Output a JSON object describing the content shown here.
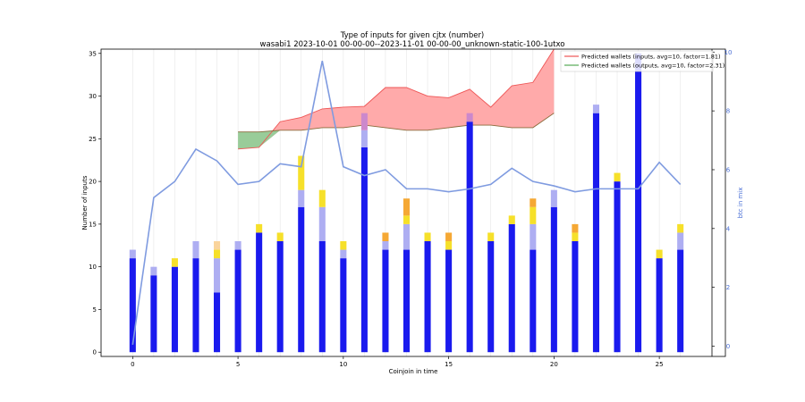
{
  "chart_data": {
    "type": "bar",
    "title": "Type of inputs for given cjtx (number)",
    "subtitle": "wasabi1 2023-10-01 00-00-00--2023-11-01 00-00-00_unknown-static-100-1utxo",
    "xlabel": "Coinjoin in time",
    "ylabel": "Number of inputs",
    "y2label": "btc in mix",
    "x_ticks": [
      0,
      5,
      10,
      15,
      20,
      25
    ],
    "y_ticks": [
      0,
      5,
      10,
      15,
      20,
      25,
      30,
      35
    ],
    "y2_ticks": [
      0,
      2,
      4,
      6,
      8,
      10
    ],
    "xlim": [
      -1.5,
      27.5
    ],
    "ylim": [
      -0.5,
      35.5
    ],
    "y2lim": [
      -0.35,
      10.1
    ],
    "x": [
      0,
      1,
      2,
      3,
      4,
      5,
      6,
      7,
      8,
      9,
      10,
      11,
      12,
      13,
      14,
      15,
      16,
      17,
      18,
      19,
      20,
      21,
      22,
      23,
      24,
      25,
      26
    ],
    "stack_series": [
      {
        "color": "#1a1aee",
        "values": [
          11,
          9,
          10,
          11,
          7,
          12,
          14,
          13,
          17,
          13,
          11,
          24,
          12,
          12,
          13,
          12,
          27,
          13,
          15,
          12,
          17,
          13,
          28,
          20,
          35,
          11,
          12
        ]
      },
      {
        "color": "#aeaef2",
        "values": [
          1,
          1,
          0,
          2,
          4,
          1,
          0,
          0,
          2,
          4,
          1,
          2,
          1,
          3,
          0,
          0,
          0,
          0,
          0,
          3,
          2,
          0,
          1,
          0,
          0,
          0,
          2
        ]
      },
      {
        "color": "#f6e02a",
        "values": [
          0,
          0,
          1,
          0,
          1,
          0,
          1,
          1,
          4,
          2,
          1,
          0,
          0,
          1,
          1,
          1,
          0,
          1,
          1,
          2,
          0,
          1,
          0,
          1,
          0,
          1,
          1
        ]
      },
      {
        "color": "#f5a834",
        "values": [
          0,
          0,
          0,
          0,
          0,
          0,
          0,
          0,
          0,
          0,
          0,
          0,
          1,
          2,
          0,
          1,
          0,
          0,
          0,
          1,
          0,
          1,
          0,
          0,
          0,
          0,
          0
        ]
      },
      {
        "color": "#fad49c",
        "values": [
          0,
          0,
          0,
          0,
          1,
          0,
          0,
          0,
          0,
          0,
          0,
          0,
          0,
          0,
          0,
          0,
          0,
          0,
          0,
          0,
          0,
          0,
          0,
          0,
          0,
          0,
          0
        ]
      },
      {
        "color": "#cc88cc",
        "values": [
          0,
          0,
          0,
          0,
          0,
          0,
          0,
          0,
          0,
          0,
          0,
          2,
          0,
          0,
          0,
          0,
          1,
          0,
          0,
          0,
          0,
          0,
          0,
          0,
          0,
          0,
          0
        ]
      }
    ],
    "btc_in_mix": {
      "color": "#7f9be0",
      "x": [
        0,
        1,
        2,
        3,
        4,
        5,
        6,
        7,
        8,
        9,
        10,
        11,
        12,
        13,
        14,
        15,
        16,
        17,
        18,
        19,
        20,
        21,
        22,
        23,
        24,
        25,
        26
      ],
      "values": [
        0.05,
        5.05,
        5.6,
        6.7,
        6.3,
        5.5,
        5.6,
        6.2,
        6.1,
        9.7,
        6.1,
        5.8,
        6.0,
        5.35,
        5.35,
        5.25,
        5.35,
        5.5,
        6.05,
        5.6,
        5.45,
        5.25,
        5.35,
        5.35,
        5.35,
        6.25,
        5.5
      ]
    },
    "predicted_inputs": {
      "label": "Predicted wallets (inputs, avg=10, factor=1.81)",
      "line_color": "#ee5555",
      "fill_color": "#ffaaaa",
      "x": [
        5,
        6,
        7,
        8,
        9,
        10,
        11,
        12,
        13,
        14,
        15,
        16,
        17,
        18,
        19,
        20
      ],
      "values": [
        23.8,
        24.0,
        27.0,
        27.5,
        28.5,
        28.7,
        28.8,
        31.0,
        31.0,
        30.0,
        29.8,
        30.8,
        28.7,
        31.2,
        31.6,
        35.5
      ]
    },
    "predicted_outputs": {
      "label": "Predicted wallets (outputs, avg=10, factor=2.31)",
      "line_color": "#55aa55",
      "fill_color": "#99cc99",
      "x": [
        5,
        6,
        7,
        8,
        9,
        10,
        11,
        12,
        13,
        14,
        15,
        16,
        17,
        18,
        19,
        20
      ],
      "values": [
        25.8,
        25.8,
        26.0,
        26.0,
        26.3,
        26.3,
        26.6,
        26.3,
        26.0,
        26.0,
        26.3,
        26.6,
        26.6,
        26.3,
        26.3,
        28.0
      ]
    },
    "legend_position": "top-right",
    "grid": "vertical"
  }
}
